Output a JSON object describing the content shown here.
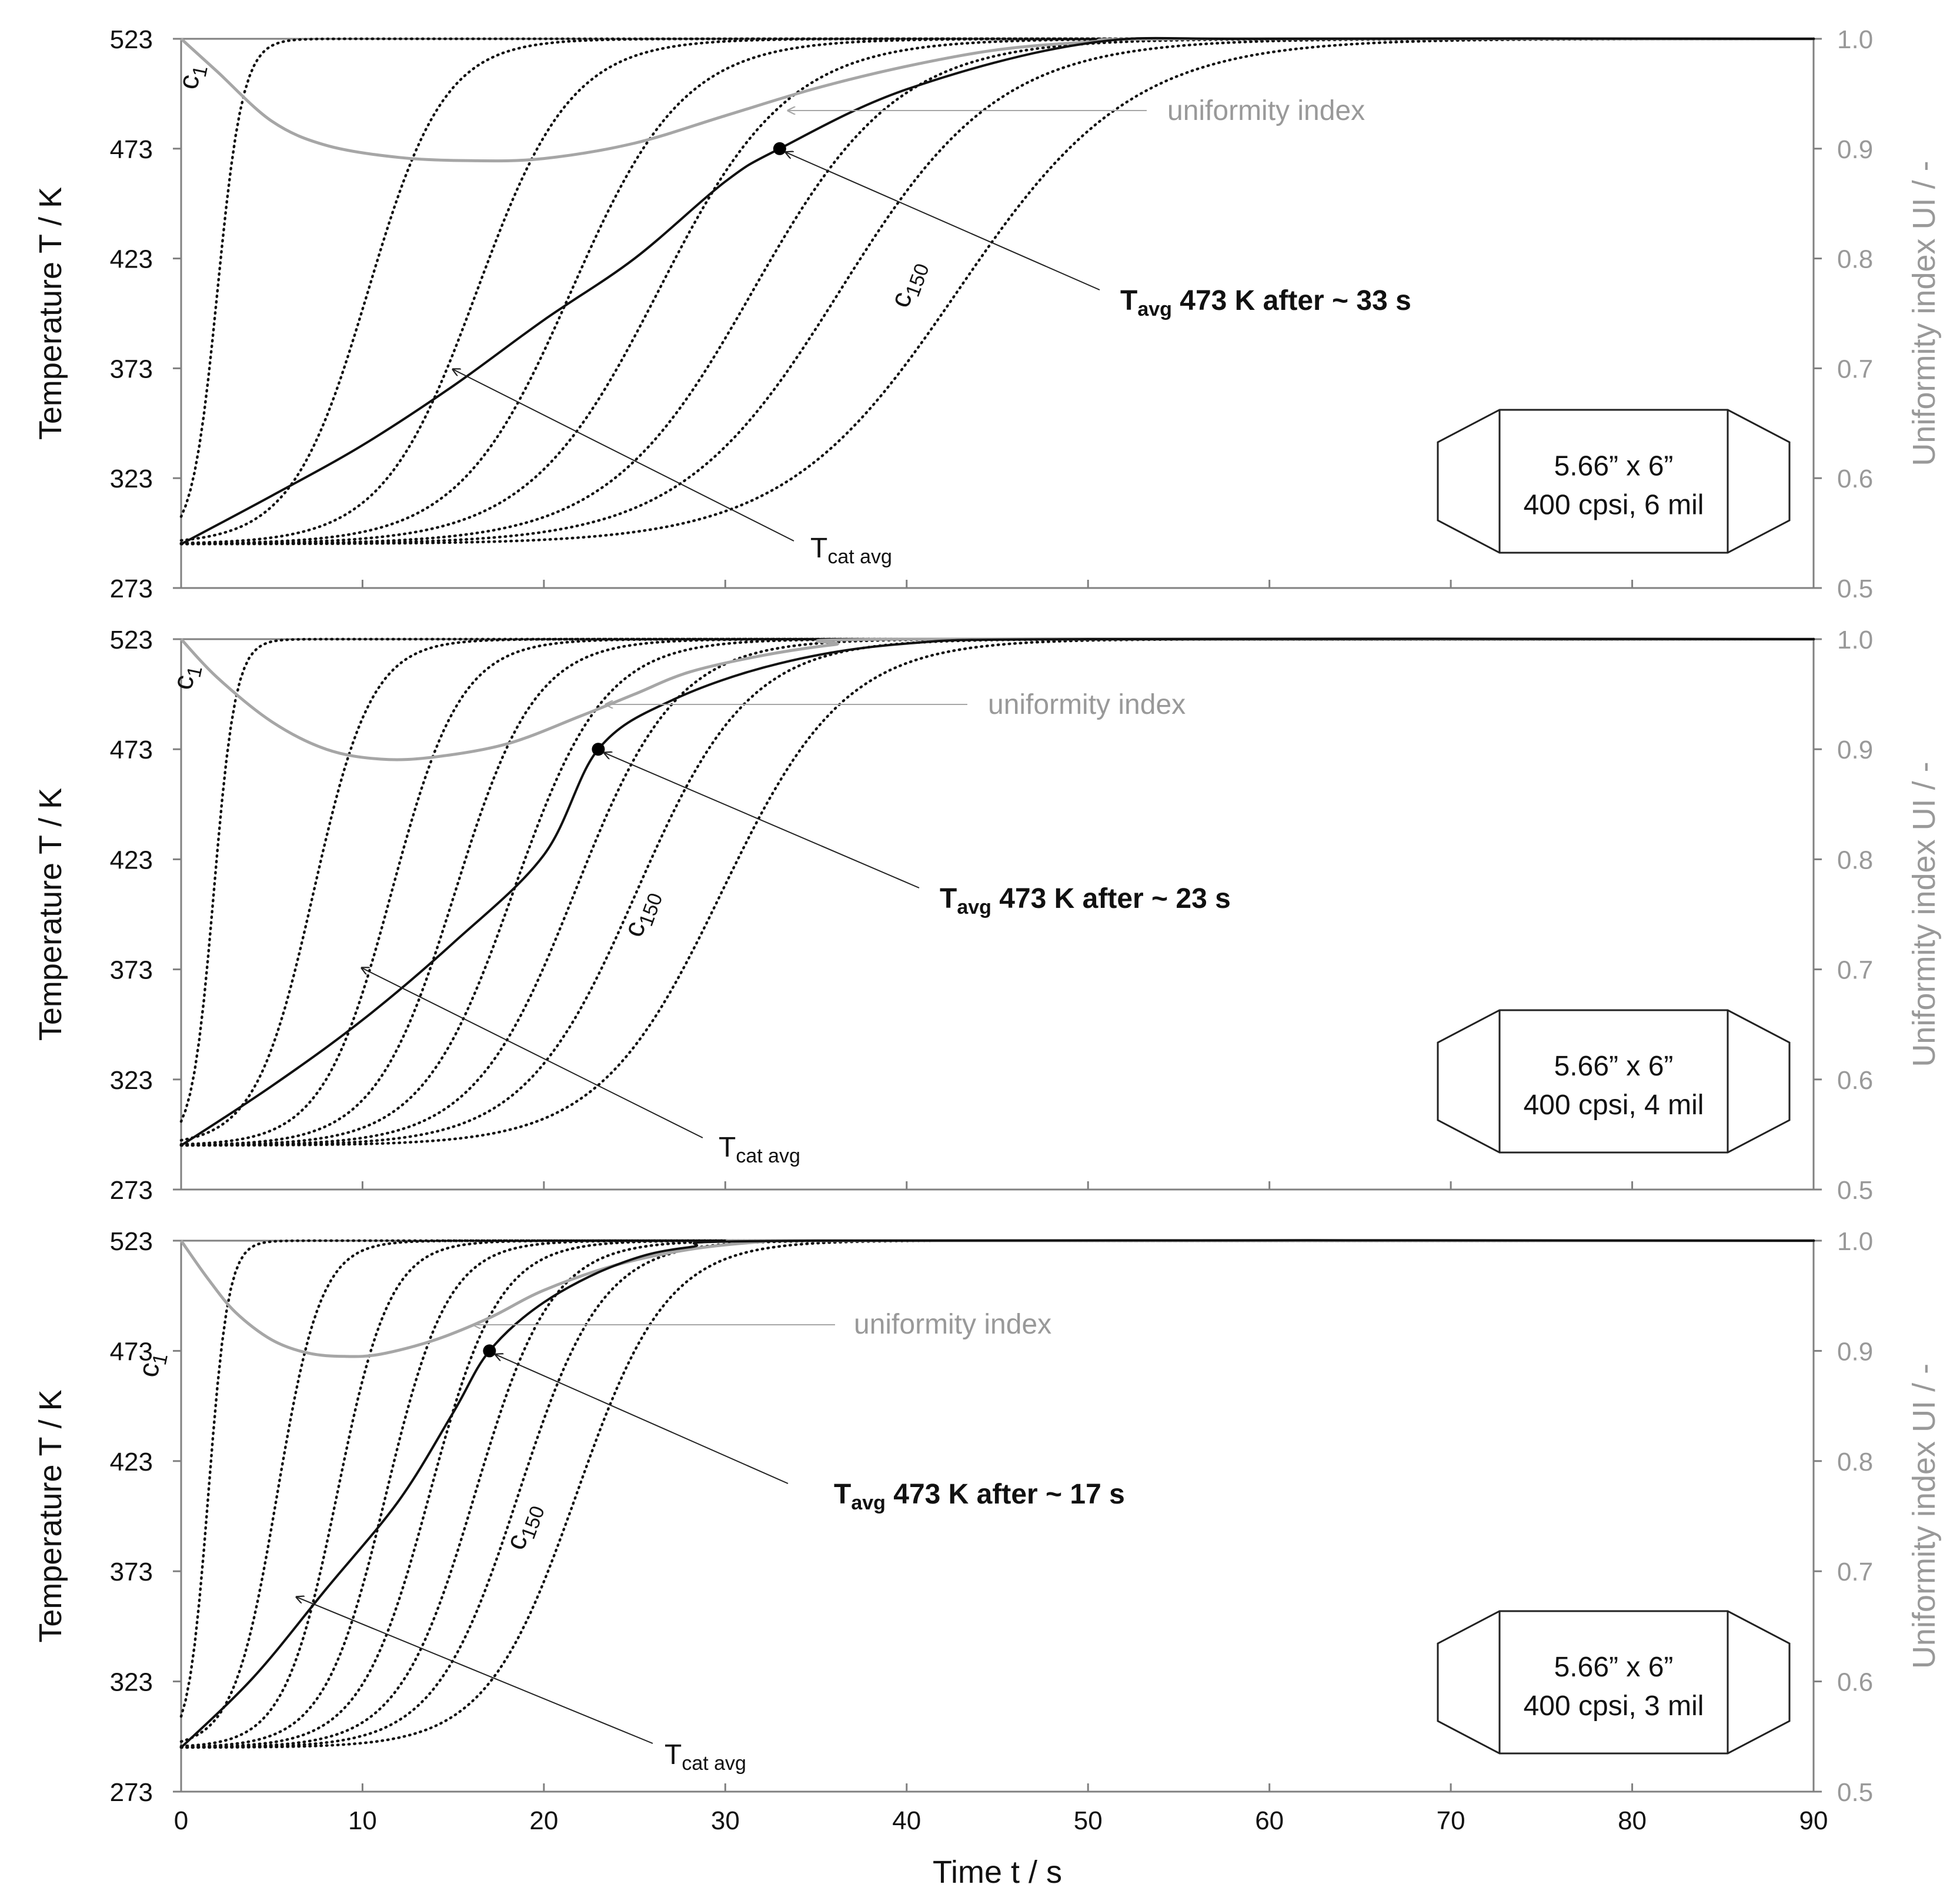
{
  "chart_data": [
    {
      "type": "line",
      "panel": "top",
      "x": [
        0,
        10,
        20,
        30,
        40,
        50,
        60,
        70,
        80,
        90
      ],
      "ylim": [
        273,
        523
      ],
      "y2lim": [
        0.5,
        1.0
      ],
      "xlim": [
        0,
        90
      ],
      "ylabel": "Temperature T / K",
      "y2label": "Uniformity index UI / -",
      "series": [
        {
          "name": "T cat avg",
          "points": [
            [
              0,
              293
            ],
            [
              5,
              315
            ],
            [
              10,
              338
            ],
            [
              15,
              365
            ],
            [
              20,
              395
            ],
            [
              25,
              423
            ],
            [
              30,
              458
            ],
            [
              33,
              473
            ],
            [
              40,
              500
            ],
            [
              50,
              521
            ],
            [
              60,
              523
            ],
            [
              90,
              523
            ]
          ]
        },
        {
          "name": "uniformity index",
          "axis": "right",
          "points": [
            [
              0,
              1.0
            ],
            [
              2,
              0.97
            ],
            [
              5,
              0.925
            ],
            [
              8,
              0.903
            ],
            [
              12,
              0.892
            ],
            [
              16,
              0.889
            ],
            [
              20,
              0.891
            ],
            [
              25,
              0.905
            ],
            [
              30,
              0.93
            ],
            [
              35,
              0.955
            ],
            [
              40,
              0.975
            ],
            [
              45,
              0.99
            ],
            [
              50,
              0.997
            ],
            [
              55,
              1.0
            ],
            [
              90,
              1.0
            ]
          ]
        },
        {
          "name": "c1",
          "mid": 2.0,
          "width": 0.7
        },
        {
          "name": "channel 2",
          "mid": 10.3,
          "width": 2.1
        },
        {
          "name": "channel 3",
          "mid": 16.3,
          "width": 2.6
        },
        {
          "name": "channel 4",
          "mid": 21.5,
          "width": 3.1
        },
        {
          "name": "channel 5",
          "mid": 26.3,
          "width": 3.6
        },
        {
          "name": "channel 6",
          "mid": 31.5,
          "width": 4.0
        },
        {
          "name": "channel 7",
          "mid": 36.3,
          "width": 4.4
        },
        {
          "name": "c150",
          "mid": 42.8,
          "width": 4.8
        }
      ],
      "c1_label_at": [
        1.0,
        505
      ],
      "c150_label_at": [
        40.5,
        410
      ],
      "marker": [
        33,
        473
      ],
      "annotations": {
        "tavg_prefix": "T",
        "tavg_sub": "avg",
        "tavg_suffix": " 473 K after ~ 33 s",
        "tcat_prefix": "T",
        "tcat_sub": "cat avg",
        "uniformity": "uniformity index",
        "c_letter": "c",
        "c1_sub": "1",
        "c150_sub": "150",
        "box_line1": "5.66” x 6”",
        "box_line2": "400 cpsi, 6 mil"
      }
    },
    {
      "type": "line",
      "panel": "middle",
      "x": [
        0,
        10,
        20,
        30,
        40,
        50,
        60,
        70,
        80,
        90
      ],
      "ylim": [
        273,
        523
      ],
      "y2lim": [
        0.5,
        1.0
      ],
      "xlim": [
        0,
        90
      ],
      "ylabel": "Temperature T / K",
      "y2label": "Uniformity index UI / -",
      "series": [
        {
          "name": "T cat avg",
          "points": [
            [
              0,
              293
            ],
            [
              5,
              320
            ],
            [
              10,
              350
            ],
            [
              15,
              385
            ],
            [
              20,
              425
            ],
            [
              23,
              473
            ],
            [
              27,
              495
            ],
            [
              33,
              512
            ],
            [
              40,
              521
            ],
            [
              50,
              523
            ],
            [
              90,
              523
            ]
          ]
        },
        {
          "name": "uniformity index",
          "axis": "right",
          "points": [
            [
              0,
              1.0
            ],
            [
              2,
              0.965
            ],
            [
              5,
              0.925
            ],
            [
              8,
              0.9
            ],
            [
              11,
              0.891
            ],
            [
              14,
              0.893
            ],
            [
              18,
              0.905
            ],
            [
              22,
              0.93
            ],
            [
              25,
              0.95
            ],
            [
              28,
              0.97
            ],
            [
              32,
              0.985
            ],
            [
              36,
              0.995
            ],
            [
              40,
              1.0
            ],
            [
              90,
              1.0
            ]
          ]
        },
        {
          "name": "c1",
          "mid": 1.8,
          "width": 0.6
        },
        {
          "name": "channel 2",
          "mid": 7.3,
          "width": 1.6
        },
        {
          "name": "channel 3",
          "mid": 11.6,
          "width": 1.9
        },
        {
          "name": "channel 4",
          "mid": 15.1,
          "width": 2.2
        },
        {
          "name": "channel 5",
          "mid": 18.3,
          "width": 2.5
        },
        {
          "name": "channel 6",
          "mid": 21.7,
          "width": 2.8
        },
        {
          "name": "channel 7",
          "mid": 25.1,
          "width": 3.1
        },
        {
          "name": "c150",
          "mid": 29.8,
          "width": 3.4
        }
      ],
      "c1_label_at": [
        0.7,
        505
      ],
      "c150_label_at": [
        25.8,
        397
      ],
      "marker": [
        23,
        473
      ],
      "annotations": {
        "tavg_prefix": "T",
        "tavg_sub": "avg",
        "tavg_suffix": " 473 K after ~ 23 s",
        "tcat_prefix": "T",
        "tcat_sub": "cat avg",
        "uniformity": "uniformity index",
        "c_letter": "c",
        "c1_sub": "1",
        "c150_sub": "150",
        "box_line1": "5.66” x 6”",
        "box_line2": "400 cpsi, 4 mil"
      }
    },
    {
      "type": "line",
      "panel": "bottom",
      "x": [
        0,
        10,
        20,
        30,
        40,
        50,
        60,
        70,
        80,
        90
      ],
      "ylim": [
        273,
        523
      ],
      "y2lim": [
        0.5,
        1.0
      ],
      "xlim": [
        0,
        90
      ],
      "ylabel": "Temperature T / K",
      "y2label": "Uniformity index UI / -",
      "xlabel": "Time  t  / s",
      "series": [
        {
          "name": "T cat avg",
          "points": [
            [
              0,
              293
            ],
            [
              4,
              325
            ],
            [
              8,
              365
            ],
            [
              12,
              405
            ],
            [
              15,
              445
            ],
            [
              17,
              473
            ],
            [
              20,
              495
            ],
            [
              24,
              512
            ],
            [
              28,
              520
            ],
            [
              35,
              523
            ],
            [
              90,
              523
            ]
          ]
        },
        {
          "name": "uniformity index",
          "axis": "right",
          "points": [
            [
              0,
              1.0
            ],
            [
              1.5,
              0.965
            ],
            [
              3,
              0.935
            ],
            [
              5,
              0.91
            ],
            [
              7,
              0.898
            ],
            [
              9,
              0.895
            ],
            [
              11,
              0.897
            ],
            [
              14,
              0.91
            ],
            [
              17,
              0.93
            ],
            [
              20,
              0.955
            ],
            [
              24,
              0.978
            ],
            [
              28,
              0.992
            ],
            [
              32,
              0.999
            ],
            [
              35,
              1.0
            ],
            [
              90,
              1.0
            ]
          ]
        },
        {
          "name": "c1",
          "mid": 1.5,
          "width": 0.55
        },
        {
          "name": "channel 2",
          "mid": 5.3,
          "width": 1.2
        },
        {
          "name": "channel 3",
          "mid": 8.6,
          "width": 1.45
        },
        {
          "name": "channel 4",
          "mid": 11.3,
          "width": 1.7
        },
        {
          "name": "channel 5",
          "mid": 13.7,
          "width": 1.9
        },
        {
          "name": "channel 6",
          "mid": 16.2,
          "width": 2.1
        },
        {
          "name": "channel 7",
          "mid": 18.6,
          "width": 2.3
        },
        {
          "name": "c150",
          "mid": 21.8,
          "width": 2.5
        }
      ],
      "c1_label_at": [
        -1.2,
        466
      ],
      "c150_label_at": [
        19.3,
        392
      ],
      "marker": [
        17,
        473
      ],
      "annotations": {
        "tavg_prefix": "T",
        "tavg_sub": "avg",
        "tavg_suffix": " 473 K after ~ 17 s",
        "tcat_prefix": "T",
        "tcat_sub": "cat avg",
        "uniformity": "uniformity index",
        "c_letter": "c",
        "c1_sub": "1",
        "c150_sub": "150",
        "box_line1": "5.66” x 6”",
        "box_line2": "400 cpsi, 3 mil"
      }
    }
  ],
  "axes": {
    "y_ticks": [
      273,
      323,
      373,
      423,
      473,
      523
    ],
    "y2_ticks": [
      "0.5",
      "0.6",
      "0.7",
      "0.8",
      "0.9",
      "1.0"
    ],
    "x_ticks": [
      0,
      10,
      20,
      30,
      40,
      50,
      60,
      70,
      80,
      90
    ],
    "xlabel": "Time  t  / s"
  },
  "colors": {
    "axis": "#808080",
    "tcat": "#111111",
    "uniformity": "#a6a6a6",
    "channels": "#111111",
    "text": "#111111",
    "ui_text": "#999999"
  }
}
